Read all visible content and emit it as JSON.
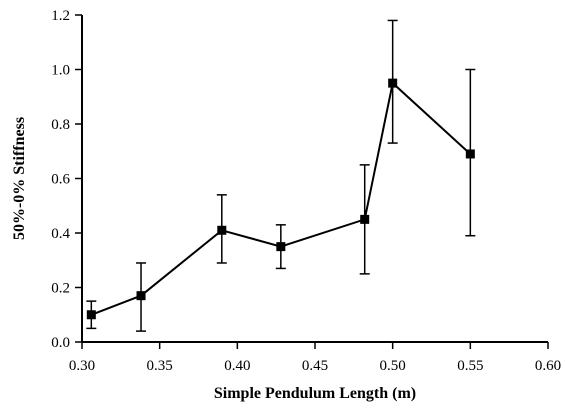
{
  "chart_data": {
    "type": "line",
    "title": "",
    "xlabel": "Simple Pendulum Length (m)",
    "ylabel": "50%-0% Stiffness",
    "xlim": [
      0.3,
      0.6
    ],
    "ylim": [
      0.0,
      1.2
    ],
    "x_ticks": [
      "0.30",
      "0.35",
      "0.40",
      "0.45",
      "0.50",
      "0.55",
      "0.60"
    ],
    "y_ticks": [
      "0.0",
      "0.2",
      "0.4",
      "0.6",
      "0.8",
      "1.0",
      "1.2"
    ],
    "grid": false,
    "marker": "square",
    "series": [
      {
        "x": [
          0.306,
          0.338,
          0.39,
          0.428,
          0.482,
          0.5,
          0.55
        ],
        "y": [
          0.1,
          0.17,
          0.41,
          0.35,
          0.45,
          0.95,
          0.69
        ],
        "err_low": [
          0.05,
          0.13,
          0.12,
          0.08,
          0.2,
          0.22,
          0.3
        ],
        "err_high": [
          0.05,
          0.12,
          0.13,
          0.08,
          0.2,
          0.23,
          0.31
        ]
      }
    ]
  }
}
